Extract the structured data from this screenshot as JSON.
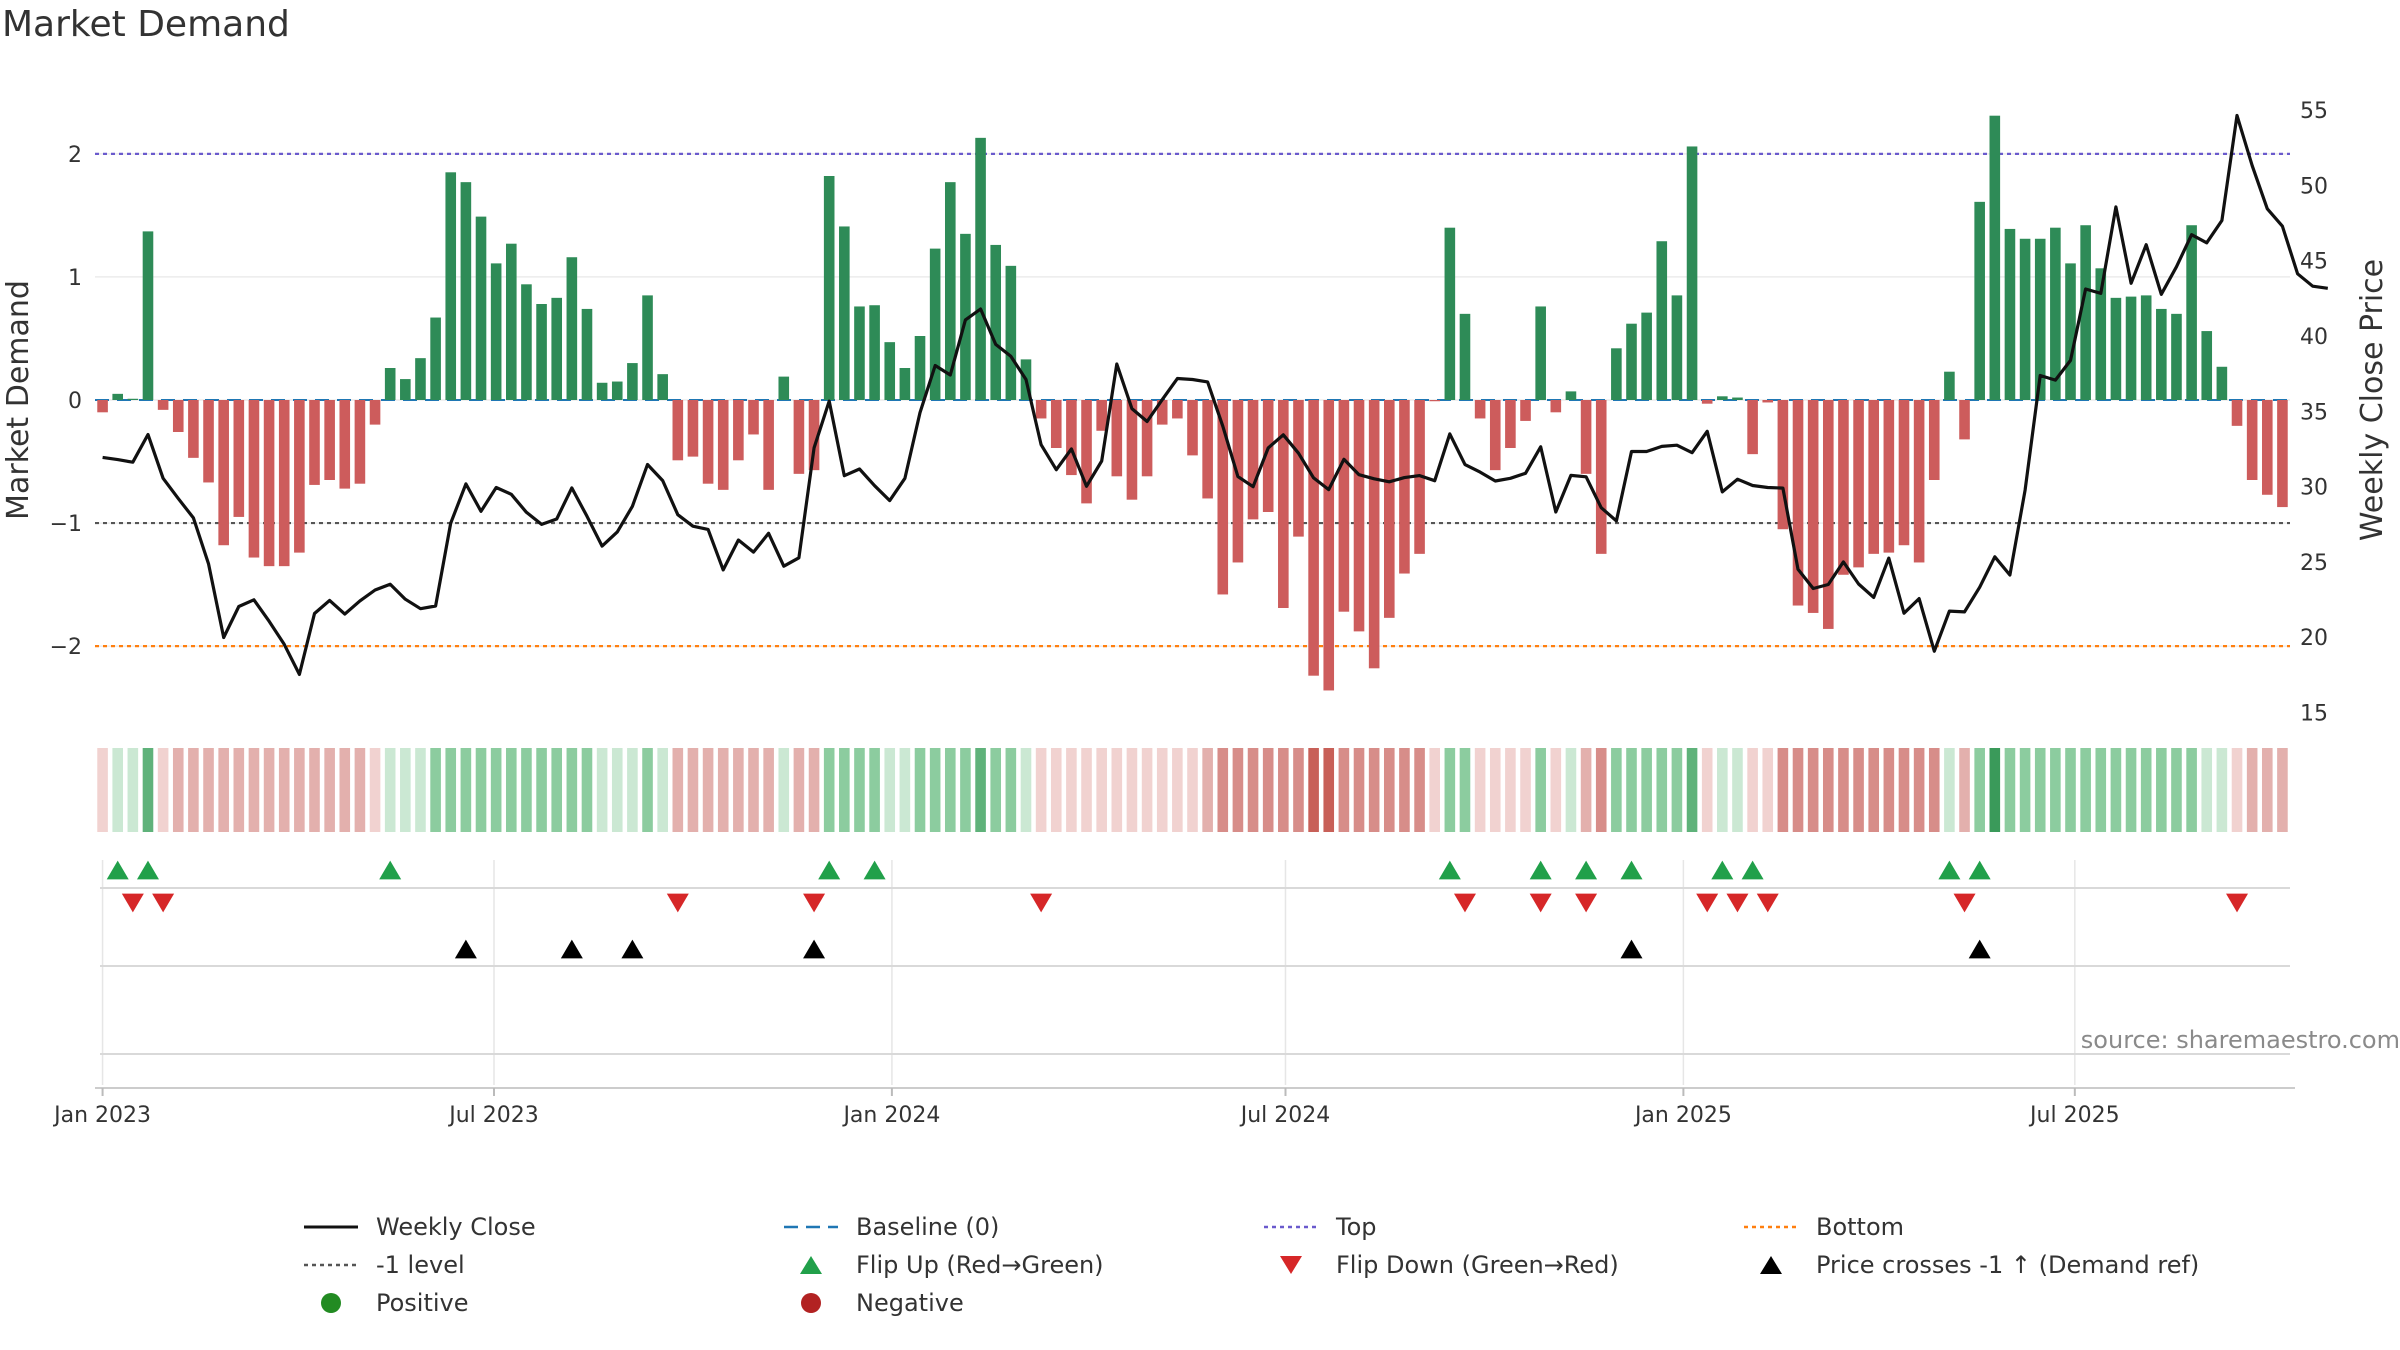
{
  "title": "Market Demand",
  "chart_data": {
    "type": "bar",
    "title": "Market Demand",
    "ylabel": "Market Demand",
    "y2label": "Weekly Close Price",
    "ylim": [
      -2.6,
      2.6
    ],
    "y2lim": [
      14.5,
      57
    ],
    "yticks": [
      -2,
      -1,
      0,
      1,
      2
    ],
    "y2ticks": [
      15,
      20,
      25,
      30,
      35,
      40,
      45,
      50,
      55
    ],
    "top_level": 2,
    "bottom_level": -2,
    "minus1_level": -1,
    "x_start": "2023-01-01",
    "x_step_days": 7,
    "x_ticks": [
      {
        "label": "Jan 2023",
        "date": "2023-01-01"
      },
      {
        "label": "Jul 2023",
        "date": "2023-07-01"
      },
      {
        "label": "Jan 2024",
        "date": "2024-01-01"
      },
      {
        "label": "Jul 2024",
        "date": "2024-07-01"
      },
      {
        "label": "Jan 2025",
        "date": "2025-01-01"
      },
      {
        "label": "Jul 2025",
        "date": "2025-07-01"
      }
    ],
    "demand": [
      -0.1,
      0.05,
      0.01,
      1.37,
      -0.08,
      -0.26,
      -0.47,
      -0.67,
      -1.18,
      -0.95,
      -1.28,
      -1.35,
      -1.35,
      -1.24,
      -0.69,
      -0.65,
      -0.72,
      -0.68,
      -0.2,
      0.26,
      0.17,
      0.34,
      0.67,
      1.85,
      1.77,
      1.49,
      1.11,
      1.27,
      0.94,
      0.78,
      0.83,
      1.16,
      0.74,
      0.14,
      0.15,
      0.3,
      0.85,
      0.21,
      -0.49,
      -0.46,
      -0.68,
      -0.73,
      -0.49,
      -0.28,
      -0.73,
      0.19,
      -0.6,
      -0.57,
      1.82,
      1.41,
      0.76,
      0.77,
      0.47,
      0.26,
      0.52,
      1.23,
      1.77,
      1.35,
      2.13,
      1.26,
      1.09,
      0.33,
      -0.15,
      -0.39,
      -0.61,
      -0.84,
      -0.25,
      -0.62,
      -0.81,
      -0.62,
      -0.2,
      -0.15,
      -0.45,
      -0.8,
      -1.58,
      -1.32,
      -0.97,
      -0.91,
      -1.69,
      -1.11,
      -2.24,
      -2.36,
      -1.72,
      -1.88,
      -2.18,
      -1.77,
      -1.41,
      -1.25,
      -0.01,
      1.4,
      0.7,
      -0.15,
      -0.57,
      -0.39,
      -0.17,
      0.76,
      -0.1,
      0.07,
      -0.6,
      -1.25,
      0.42,
      0.62,
      0.71,
      1.29,
      0.85,
      2.06,
      -0.03,
      0.03,
      0.02,
      -0.44,
      -0.02,
      -1.05,
      -1.67,
      -1.73,
      -1.86,
      -1.42,
      -1.36,
      -1.25,
      -1.24,
      -1.18,
      -1.32,
      -0.65,
      0.23,
      -0.32,
      1.61,
      2.31,
      1.39,
      1.31,
      1.31,
      1.4,
      1.11,
      1.42,
      1.07,
      0.83,
      0.84,
      0.85,
      0.74,
      0.7,
      1.42,
      0.56,
      0.27,
      -0.21,
      -0.65,
      -0.77,
      -0.87
    ],
    "close": [
      31.94,
      31.79,
      31.62,
      33.46,
      30.55,
      29.2,
      27.92,
      24.88,
      19.98,
      22.04,
      22.48,
      21.06,
      19.53,
      17.53,
      21.57,
      22.44,
      21.53,
      22.41,
      23.13,
      23.52,
      22.52,
      21.89,
      22.07,
      27.57,
      30.18,
      28.36,
      29.94,
      29.49,
      28.29,
      27.49,
      27.85,
      29.91,
      28.03,
      26.05,
      26.99,
      28.69,
      31.47,
      30.4,
      28.13,
      27.37,
      27.16,
      24.47,
      26.45,
      25.65,
      26.9,
      24.71,
      25.27,
      32.58,
      35.68,
      30.72,
      31.17,
      30.06,
      29.07,
      30.55,
      34.91,
      38.04,
      37.41,
      41.07,
      41.79,
      39.44,
      38.66,
      37.11,
      32.78,
      31.12,
      32.5,
      30.02,
      31.7,
      38.14,
      35.18,
      34.32,
      35.77,
      37.18,
      37.11,
      36.95,
      34.01,
      30.66,
      29.99,
      32.56,
      33.44,
      32.22,
      30.58,
      29.8,
      31.81,
      30.79,
      30.52,
      30.32,
      30.6,
      30.73,
      30.39,
      33.5,
      31.46,
      30.96,
      30.37,
      30.55,
      30.88,
      32.64,
      28.31,
      30.74,
      30.65,
      28.6,
      27.72,
      32.33,
      32.33,
      32.67,
      32.75,
      32.25,
      33.67,
      29.65,
      30.49,
      30.07,
      29.94,
      29.9,
      24.51,
      23.23,
      23.5,
      25.0,
      23.53,
      22.64,
      25.25,
      21.59,
      22.56,
      19.07,
      21.73,
      21.68,
      23.32,
      25.34,
      24.13,
      29.77,
      37.38,
      37.07,
      38.38,
      43.12,
      42.83,
      48.57,
      43.5,
      46.06,
      42.77,
      44.6,
      46.73,
      46.19,
      47.67,
      54.64,
      51.31,
      48.45,
      47.29,
      44.13,
      43.31,
      43.17
    ],
    "flip_up_idx": [
      1,
      3,
      19,
      48,
      51,
      89,
      95,
      98,
      101,
      107,
      109,
      122,
      124
    ],
    "flip_down_idx": [
      2,
      4,
      38,
      47,
      62,
      90,
      95,
      98,
      106,
      108,
      110,
      123,
      141
    ],
    "price_cross_idx": [
      24,
      31,
      35,
      47,
      101,
      124
    ],
    "band_shades": [
      -1,
      1,
      1,
      3,
      -1,
      -2,
      -2,
      -2,
      -2,
      -2,
      -2,
      -2,
      -2,
      -2,
      -2,
      -2,
      -2,
      -2,
      -1,
      1,
      1,
      1,
      2,
      2,
      2,
      2,
      2,
      2,
      2,
      2,
      2,
      2,
      2,
      1,
      1,
      1,
      2,
      1,
      -2,
      -2,
      -2,
      -2,
      -2,
      -2,
      -2,
      1,
      -2,
      -2,
      2,
      2,
      2,
      2,
      1,
      1,
      2,
      2,
      2,
      2,
      3,
      2,
      2,
      1,
      -1,
      -1,
      -1,
      -1,
      -1,
      -1,
      -1,
      -1,
      -1,
      -1,
      -1,
      -2,
      -3,
      -3,
      -3,
      -3,
      -3,
      -3,
      -4,
      -4,
      -3,
      -3,
      -3,
      -3,
      -3,
      -3,
      -1,
      2,
      2,
      -1,
      -1,
      -1,
      -1,
      2,
      -1,
      1,
      -2,
      -3,
      2,
      2,
      2,
      2,
      2,
      3,
      -1,
      1,
      1,
      -1,
      -1,
      -3,
      -3,
      -3,
      -3,
      -3,
      -3,
      -3,
      -3,
      -3,
      -3,
      -3,
      1,
      -2,
      2,
      4,
      2,
      2,
      2,
      2,
      2,
      2,
      2,
      2,
      2,
      2,
      2,
      2,
      2,
      1,
      1,
      -1,
      -2,
      -2,
      -2
    ],
    "source": "source: sharemaestro.com",
    "legend": [
      {
        "label": "Weekly Close",
        "symbol": "line-black"
      },
      {
        "label": "Baseline (0)",
        "symbol": "dash-blue"
      },
      {
        "label": "Top",
        "symbol": "dot-purple"
      },
      {
        "label": "Bottom",
        "symbol": "dot-orange"
      },
      {
        "label": "-1 level",
        "symbol": "dot-gray"
      },
      {
        "label": "Flip Up (Red→Green)",
        "symbol": "tri-up-green"
      },
      {
        "label": "Flip Down (Green→Red)",
        "symbol": "tri-down-red"
      },
      {
        "label": "Price crosses -1 ↑ (Demand ref)",
        "symbol": "tri-up-black"
      },
      {
        "label": "Positive",
        "symbol": "circle-green"
      },
      {
        "label": "Negative",
        "symbol": "circle-red"
      }
    ]
  },
  "colors": {
    "positive": "#2e8b57",
    "negative": "#cd5c5c",
    "close_line": "#111111",
    "baseline": "#1f77b4",
    "top": "#6a5acd",
    "bottom": "#ff7f0e",
    "minus1": "#555555",
    "flip_up": "#21a04a",
    "flip_down": "#d62728",
    "cross": "#000000",
    "legend_positive": "#228b22",
    "legend_negative": "#b22222"
  }
}
